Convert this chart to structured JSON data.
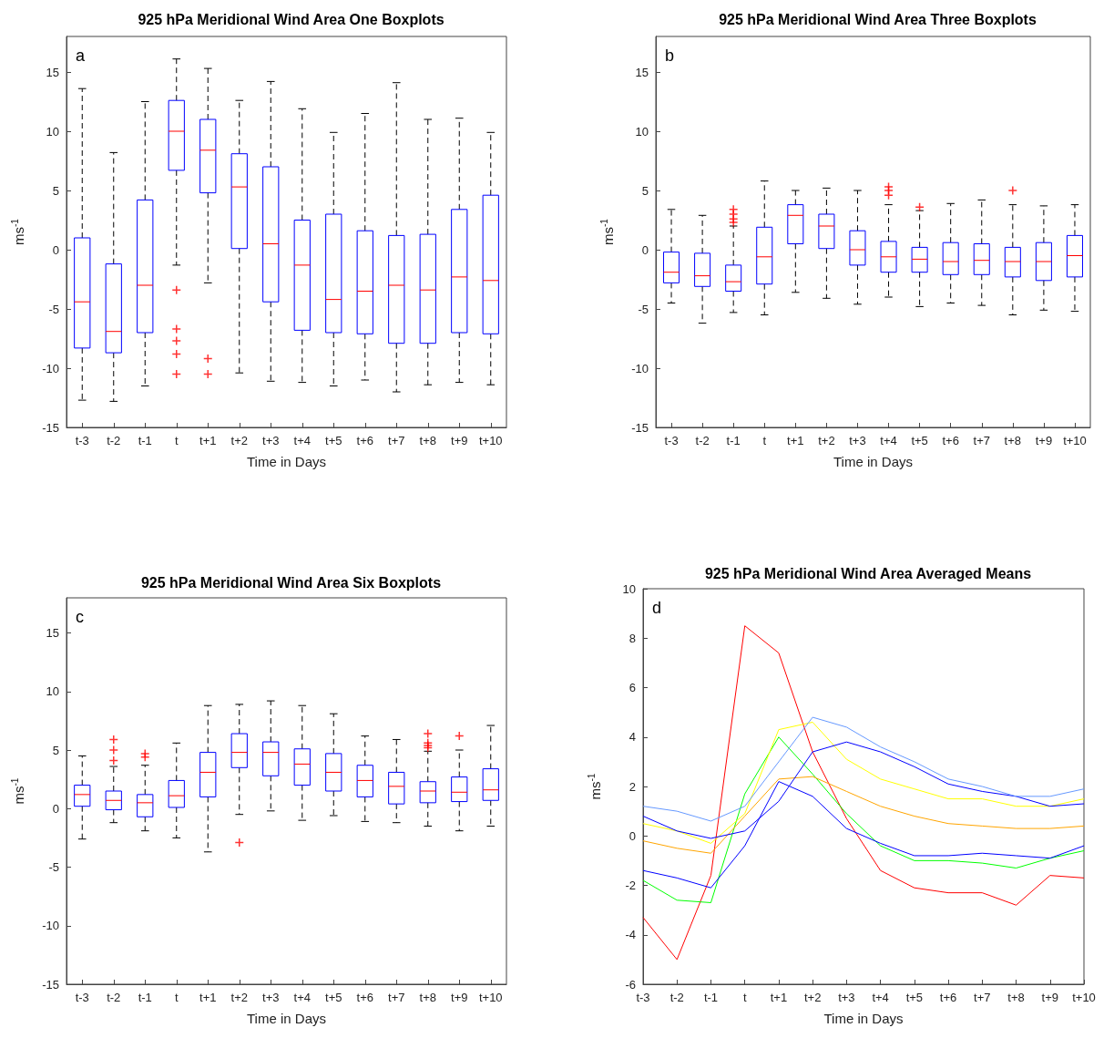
{
  "chart_data": [
    {
      "type": "box",
      "title": "925 hPa Meridional Wind Area One Boxplots",
      "xlabel": "Time in Days",
      "ylabel": "ms$^{-1}$",
      "annotations": [
        "a"
      ],
      "categories": [
        "t-3",
        "t-2",
        "t-1",
        "t",
        "t+1",
        "t+2",
        "t+3",
        "t+4",
        "t+5",
        "t+6",
        "t+7",
        "t+8",
        "t+9",
        "t+10"
      ],
      "ylim": [
        -15,
        18
      ],
      "yticks": [
        -15,
        -10,
        -5,
        0,
        5,
        10,
        15
      ],
      "boxes": [
        {
          "low": -12.7,
          "q1": -8.3,
          "median": -4.4,
          "q3": 1.0,
          "high": 13.6
        },
        {
          "low": -12.8,
          "q1": -8.7,
          "median": -6.9,
          "q3": -1.2,
          "high": 8.2
        },
        {
          "low": -11.5,
          "q1": -7.0,
          "median": -3.0,
          "q3": 4.2,
          "high": 12.5
        },
        {
          "low": -1.3,
          "q1": 6.7,
          "median": 10.0,
          "q3": 12.6,
          "high": 16.1,
          "outliers": [
            -3.4,
            -6.7,
            -7.7,
            -8.8,
            -10.5
          ]
        },
        {
          "low": -2.8,
          "q1": 4.8,
          "median": 8.4,
          "q3": 11.0,
          "high": 15.3,
          "outliers": [
            -9.2,
            -10.5
          ]
        },
        {
          "low": -10.4,
          "q1": 0.1,
          "median": 5.3,
          "q3": 8.1,
          "high": 12.6
        },
        {
          "low": -11.1,
          "q1": -4.4,
          "median": 0.5,
          "q3": 7.0,
          "high": 14.2
        },
        {
          "low": -11.2,
          "q1": -6.8,
          "median": -1.3,
          "q3": 2.5,
          "high": 11.9
        },
        {
          "low": -11.5,
          "q1": -7.0,
          "median": -4.2,
          "q3": 3.0,
          "high": 9.9
        },
        {
          "low": -11.0,
          "q1": -7.1,
          "median": -3.5,
          "q3": 1.6,
          "high": 11.5
        },
        {
          "low": -12.0,
          "q1": -7.9,
          "median": -3.0,
          "q3": 1.2,
          "high": 14.1
        },
        {
          "low": -11.4,
          "q1": -7.9,
          "median": -3.4,
          "q3": 1.3,
          "high": 11.0
        },
        {
          "low": -11.2,
          "q1": -7.0,
          "median": -2.3,
          "q3": 3.4,
          "high": 11.1
        },
        {
          "low": -11.4,
          "q1": -7.1,
          "median": -2.6,
          "q3": 4.6,
          "high": 9.9
        }
      ]
    },
    {
      "type": "box",
      "title": "925 hPa Meridional Wind Area Three Boxplots",
      "xlabel": "Time in Days",
      "ylabel": "ms$^{-1}$",
      "annotations": [
        "b"
      ],
      "categories": [
        "t-3",
        "t-2",
        "t-1",
        "t",
        "t+1",
        "t+2",
        "t+3",
        "t+4",
        "t+5",
        "t+6",
        "t+7",
        "t+8",
        "t+9",
        "t+10"
      ],
      "ylim": [
        -15,
        18
      ],
      "yticks": [
        -15,
        -10,
        -5,
        0,
        5,
        10,
        15
      ],
      "boxes": [
        {
          "low": -4.5,
          "q1": -2.8,
          "median": -1.9,
          "q3": -0.2,
          "high": 3.4
        },
        {
          "low": -6.2,
          "q1": -3.1,
          "median": -2.2,
          "q3": -0.3,
          "high": 2.9
        },
        {
          "low": -5.3,
          "q1": -3.5,
          "median": -2.7,
          "q3": -1.3,
          "high": 2.0,
          "outliers": [
            3.4,
            3.0,
            2.6,
            2.3
          ]
        },
        {
          "low": -5.5,
          "q1": -2.9,
          "median": -0.6,
          "q3": 1.9,
          "high": 5.8
        },
        {
          "low": -3.6,
          "q1": 0.5,
          "median": 2.9,
          "q3": 3.8,
          "high": 5.0
        },
        {
          "low": -4.1,
          "q1": 0.1,
          "median": 2.0,
          "q3": 3.0,
          "high": 5.2
        },
        {
          "low": -4.6,
          "q1": -1.3,
          "median": 0.0,
          "q3": 1.6,
          "high": 5.0
        },
        {
          "low": -4.0,
          "q1": -1.9,
          "median": -0.6,
          "q3": 0.7,
          "high": 3.8,
          "outliers": [
            5.3,
            5.0,
            4.6
          ]
        },
        {
          "low": -4.8,
          "q1": -1.9,
          "median": -0.8,
          "q3": 0.2,
          "high": 3.3,
          "outliers": [
            3.6
          ]
        },
        {
          "low": -4.5,
          "q1": -2.1,
          "median": -1.0,
          "q3": 0.6,
          "high": 3.9
        },
        {
          "low": -4.7,
          "q1": -2.1,
          "median": -0.9,
          "q3": 0.5,
          "high": 4.2
        },
        {
          "low": -5.5,
          "q1": -2.3,
          "median": -1.0,
          "q3": 0.2,
          "high": 3.8,
          "outliers": [
            5.0
          ]
        },
        {
          "low": -5.1,
          "q1": -2.6,
          "median": -1.0,
          "q3": 0.6,
          "high": 3.7
        },
        {
          "low": -5.2,
          "q1": -2.3,
          "median": -0.5,
          "q3": 1.2,
          "high": 3.8
        }
      ]
    },
    {
      "type": "box",
      "title": "925 hPa Meridional Wind Area Six Boxplots",
      "xlabel": "Time in Days",
      "ylabel": "ms$^{-1}$",
      "annotations": [
        "c"
      ],
      "categories": [
        "t-3",
        "t-2",
        "t-1",
        "t",
        "t+1",
        "t+2",
        "t+3",
        "t+4",
        "t+5",
        "t+6",
        "t+7",
        "t+8",
        "t+9",
        "t+10"
      ],
      "ylim": [
        -15,
        18
      ],
      "yticks": [
        -15,
        -10,
        -5,
        0,
        5,
        10,
        15
      ],
      "boxes": [
        {
          "low": -2.6,
          "q1": 0.2,
          "median": 1.2,
          "q3": 2.0,
          "high": 4.5
        },
        {
          "low": -1.2,
          "q1": -0.1,
          "median": 0.7,
          "q3": 1.5,
          "high": 3.6,
          "outliers": [
            5.9,
            5.0,
            4.1
          ]
        },
        {
          "low": -1.9,
          "q1": -0.7,
          "median": 0.5,
          "q3": 1.2,
          "high": 3.7,
          "outliers": [
            4.7,
            4.4
          ]
        },
        {
          "low": -2.5,
          "q1": 0.1,
          "median": 1.1,
          "q3": 2.4,
          "high": 5.6
        },
        {
          "low": -3.7,
          "q1": 1.0,
          "median": 3.1,
          "q3": 4.8,
          "high": 8.8
        },
        {
          "low": -0.5,
          "q1": 3.5,
          "median": 4.8,
          "q3": 6.4,
          "high": 8.9,
          "outliers": [
            -2.9
          ]
        },
        {
          "low": -0.2,
          "q1": 2.8,
          "median": 4.8,
          "q3": 5.7,
          "high": 9.2
        },
        {
          "low": -1.0,
          "q1": 2.0,
          "median": 3.8,
          "q3": 5.1,
          "high": 8.8
        },
        {
          "low": -0.6,
          "q1": 1.5,
          "median": 3.1,
          "q3": 4.7,
          "high": 8.1
        },
        {
          "low": -1.1,
          "q1": 1.0,
          "median": 2.4,
          "q3": 3.7,
          "high": 6.2
        },
        {
          "low": -1.2,
          "q1": 0.4,
          "median": 1.9,
          "q3": 3.1,
          "high": 5.9
        },
        {
          "low": -1.5,
          "q1": 0.5,
          "median": 1.5,
          "q3": 2.3,
          "high": 4.9,
          "outliers": [
            6.4,
            5.6,
            5.4,
            5.2
          ]
        },
        {
          "low": -1.9,
          "q1": 0.6,
          "median": 1.4,
          "q3": 2.7,
          "high": 5.0,
          "outliers": [
            6.2
          ]
        },
        {
          "low": -1.5,
          "q1": 0.7,
          "median": 1.6,
          "q3": 3.4,
          "high": 7.1
        }
      ]
    },
    {
      "type": "line",
      "title": "925 hPa Meridional Wind Area Averaged Means",
      "xlabel": "Time in Days",
      "ylabel": "ms$^{-1}$",
      "annotations": [
        "d"
      ],
      "categories": [
        "t-3",
        "t-2",
        "t-1",
        "t",
        "t+1",
        "t+2",
        "t+3",
        "t+4",
        "t+5",
        "t+6",
        "t+7",
        "t+8",
        "t+9",
        "t+10"
      ],
      "ylim": [
        -6,
        10
      ],
      "yticks": [
        -6,
        -4,
        -2,
        0,
        2,
        4,
        6,
        8,
        10
      ],
      "marker": "none",
      "series": [
        {
          "color": "#ff0000",
          "values": [
            -3.3,
            -5.0,
            -1.6,
            8.5,
            7.4,
            3.4,
            0.7,
            -1.4,
            -2.1,
            -2.3,
            -2.3,
            -2.8,
            -1.6,
            -1.7
          ]
        },
        {
          "color": "#00ff00",
          "values": [
            -1.8,
            -2.6,
            -2.7,
            1.7,
            4.0,
            2.5,
            0.9,
            -0.4,
            -1.0,
            -1.0,
            -1.1,
            -1.3,
            -0.9,
            -0.6
          ]
        },
        {
          "color": "#0000ff",
          "values": [
            -1.4,
            -1.7,
            -2.1,
            -0.4,
            2.2,
            1.6,
            0.3,
            -0.3,
            -0.8,
            -0.8,
            -0.7,
            -0.8,
            -0.9,
            -0.4
          ]
        },
        {
          "color": "#ffa500",
          "values": [
            -0.2,
            -0.5,
            -0.7,
            0.8,
            2.3,
            2.4,
            1.8,
            1.2,
            0.8,
            0.5,
            0.4,
            0.3,
            0.3,
            0.4
          ]
        },
        {
          "color": "#ffff00",
          "values": [
            0.5,
            0.2,
            -0.3,
            0.9,
            4.3,
            4.6,
            3.1,
            2.3,
            1.9,
            1.5,
            1.5,
            1.2,
            1.2,
            1.5
          ]
        },
        {
          "color": "#0000ff",
          "values": [
            0.8,
            0.2,
            -0.1,
            0.2,
            1.4,
            3.4,
            3.8,
            3.4,
            2.8,
            2.1,
            1.8,
            1.6,
            1.2,
            1.3
          ]
        },
        {
          "color": "#6699ff",
          "values": [
            1.2,
            1.0,
            0.6,
            1.2,
            3.0,
            4.8,
            4.4,
            3.6,
            3.0,
            2.3,
            2.0,
            1.6,
            1.6,
            1.9
          ]
        }
      ]
    }
  ]
}
